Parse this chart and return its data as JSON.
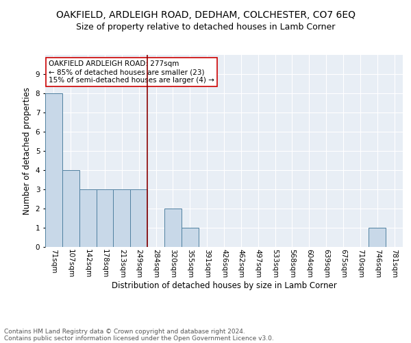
{
  "title": "OAKFIELD, ARDLEIGH ROAD, DEDHAM, COLCHESTER, CO7 6EQ",
  "subtitle": "Size of property relative to detached houses in Lamb Corner",
  "xlabel": "Distribution of detached houses by size in Lamb Corner",
  "ylabel": "Number of detached properties",
  "footnote1": "Contains HM Land Registry data © Crown copyright and database right 2024.",
  "footnote2": "Contains public sector information licensed under the Open Government Licence v3.0.",
  "categories": [
    "71sqm",
    "107sqm",
    "142sqm",
    "178sqm",
    "213sqm",
    "249sqm",
    "284sqm",
    "320sqm",
    "355sqm",
    "391sqm",
    "426sqm",
    "462sqm",
    "497sqm",
    "533sqm",
    "568sqm",
    "604sqm",
    "639sqm",
    "675sqm",
    "710sqm",
    "746sqm",
    "781sqm"
  ],
  "values": [
    8,
    4,
    3,
    3,
    3,
    3,
    0,
    2,
    1,
    0,
    0,
    0,
    0,
    0,
    0,
    0,
    0,
    0,
    0,
    1,
    0
  ],
  "bar_color": "#c8d8e8",
  "bar_edge_color": "#5080a0",
  "vline_color": "#8b0000",
  "annotation_text": "OAKFIELD ARDLEIGH ROAD: 277sqm\n← 85% of detached houses are smaller (23)\n15% of semi-detached houses are larger (4) →",
  "annotation_box_color": "white",
  "annotation_box_edge_color": "#cc0000",
  "ylim": [
    0,
    10
  ],
  "yticks": [
    0,
    1,
    2,
    3,
    4,
    5,
    6,
    7,
    8,
    9,
    10
  ],
  "background_color": "#e8eef5",
  "grid_color": "white",
  "title_fontsize": 10,
  "subtitle_fontsize": 9,
  "axis_label_fontsize": 8.5,
  "tick_fontsize": 7.5,
  "annotation_fontsize": 7.5,
  "footnote_fontsize": 6.5
}
